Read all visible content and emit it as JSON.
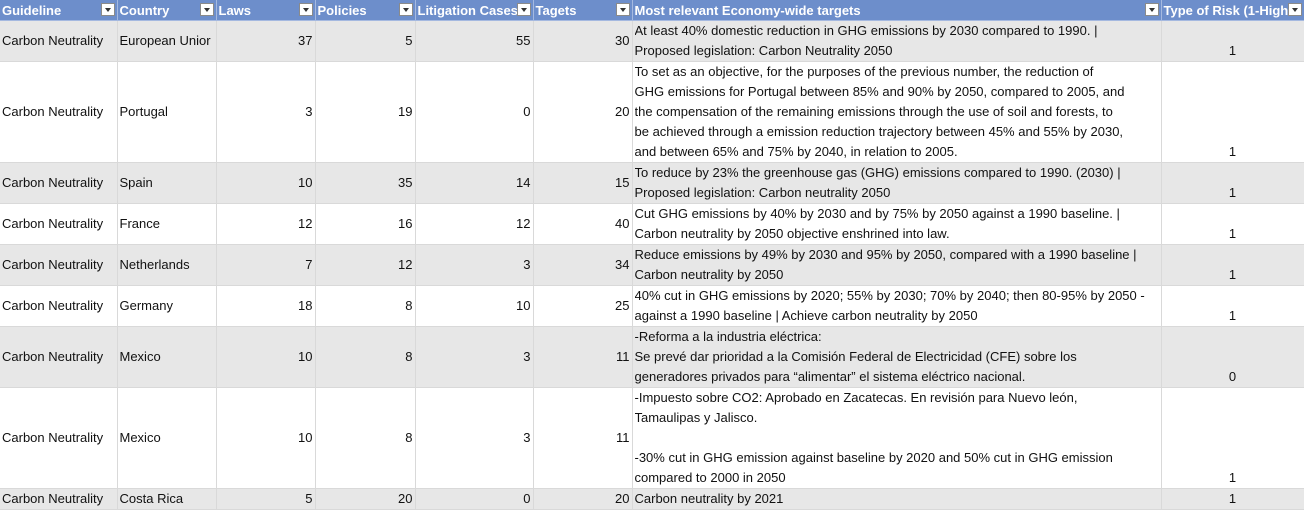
{
  "header": {
    "guideline": "Guideline",
    "country": "Country",
    "laws": "Laws",
    "policies": "Policies",
    "litigation": "Litigation Cases",
    "targets": "Tagets",
    "economy_targets": "Most relevant Economy-wide targets",
    "risk": "Type of Risk (1-High"
  },
  "rows": [
    {
      "guideline": "Carbon Neutrality",
      "country": "European Unior",
      "laws": "37",
      "policies": "5",
      "litigation": "55",
      "targets": "30",
      "target_lines": [
        "At least 40% domestic reduction in GHG emissions by 2030 compared to 1990. |",
        "Proposed legislation: Carbon Neutrality 2050"
      ],
      "risk": "1"
    },
    {
      "guideline": "Carbon Neutrality",
      "country": "Portugal",
      "laws": "3",
      "policies": "19",
      "litigation": "0",
      "targets": "20",
      "target_lines": [
        "To set as an objective, for the purposes of the previous number, the reduction of",
        "GHG emissions for Portugal between 85% and 90% by 2050, compared to 2005, and",
        "the compensation of the remaining emissions through the use of soil and forests, to",
        "be achieved through a emission reduction trajectory between 45% and 55% by 2030,",
        "and between 65% and 75% by 2040, in relation to 2005."
      ],
      "risk": "1"
    },
    {
      "guideline": "Carbon Neutrality",
      "country": "Spain",
      "laws": "10",
      "policies": "35",
      "litigation": "14",
      "targets": "15",
      "target_lines": [
        "To reduce by 23% the greenhouse gas (GHG) emissions compared to 1990. (2030) |",
        "Proposed legislation: Carbon neutrality 2050"
      ],
      "risk": "1"
    },
    {
      "guideline": "Carbon Neutrality",
      "country": "France",
      "laws": "12",
      "policies": "16",
      "litigation": "12",
      "targets": "40",
      "target_lines": [
        "Cut GHG emissions by 40% by 2030 and by 75% by 2050 against a 1990 baseline. |",
        "Carbon neutrality by 2050 objective enshrined into law."
      ],
      "risk": "1"
    },
    {
      "guideline": "Carbon Neutrality",
      "country": "Netherlands",
      "laws": "7",
      "policies": "12",
      "litigation": "3",
      "targets": "34",
      "target_lines": [
        "Reduce emissions by 49% by 2030 and 95% by 2050, compared with a 1990 baseline |",
        "Carbon neutrality by 2050"
      ],
      "risk": "1"
    },
    {
      "guideline": "Carbon Neutrality",
      "country": "Germany",
      "laws": "18",
      "policies": "8",
      "litigation": "10",
      "targets": "25",
      "target_lines": [
        "40% cut in GHG emissions by 2020; 55% by 2030; 70% by 2040; then 80-95% by 2050 -",
        "against a 1990 baseline |  Achieve carbon neutrality by 2050"
      ],
      "risk": "1"
    },
    {
      "guideline": "Carbon Neutrality",
      "country": "Mexico",
      "laws": "10",
      "policies": "8",
      "litigation": "3",
      "targets": "11",
      "target_lines": [
        "-Reforma a la industria eléctrica:",
        "Se prevé dar prioridad a la Comisión Federal de Electricidad (CFE) sobre los",
        "generadores privados para “alimentar” el sistema eléctrico nacional."
      ],
      "risk": "0"
    },
    {
      "guideline": "Carbon Neutrality",
      "country": "Mexico",
      "laws": "10",
      "policies": "8",
      "litigation": "3",
      "targets": "11",
      "target_lines": [
        "-Impuesto sobre CO2: Aprobado en Zacatecas. En revisión para Nuevo león,",
        "Tamaulipas y Jalisco.",
        "",
        "-30% cut in GHG emission against baseline by 2020 and 50% cut in GHG emission",
        "compared to 2000 in 2050"
      ],
      "risk": "1"
    },
    {
      "guideline": "Carbon Neutrality",
      "country": "Costa Rica",
      "laws": "5",
      "policies": "20",
      "litigation": "0",
      "targets": "20",
      "target_lines": [
        "Carbon neutrality by 2021"
      ],
      "risk": "1"
    }
  ]
}
